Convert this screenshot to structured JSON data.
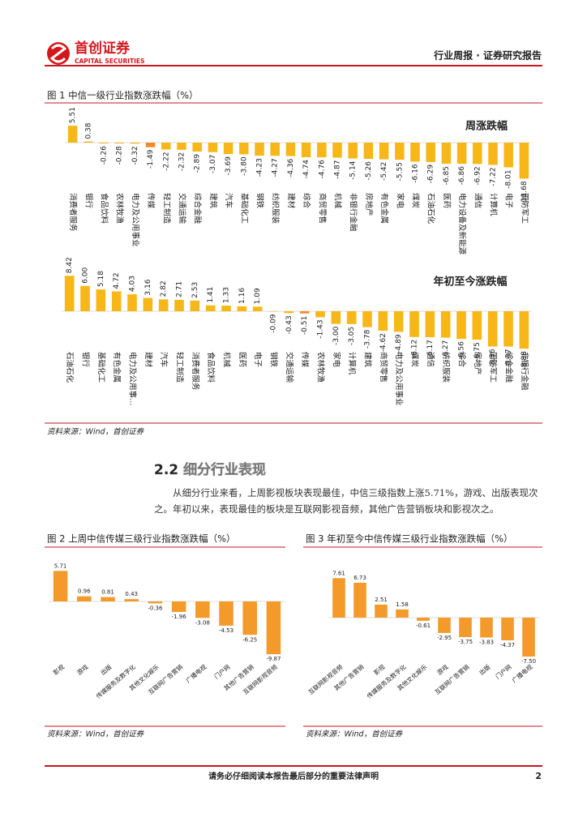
{
  "header": {
    "brand": "首创证券",
    "brand_en": "CAPITAL SECURITIES",
    "report_type": "行业周报 · 证券研究报告"
  },
  "figures": [
    {
      "caption": "图 1  中信一级行业指数涨跌幅（%）",
      "source": "资料来源：Wind，首创证券"
    },
    {
      "caption": "图 2  上周中信传媒三级行业指数涨跌幅（%）",
      "source": "资料来源：Wind，首创证券"
    },
    {
      "caption": "图 3  年初至今中信传媒三级行业指数涨跌幅（%）",
      "source": "资料来源：Wind，首创证券"
    }
  ],
  "section": {
    "heading": "2.2 细分行业表现",
    "paragraph": "从细分行业来看，上周影视板块表现最佳，中信三级指数上涨5.71%，游戏、出版表现次之。年初以来，表现最佳的板块是互联网影视音频，其他广告营销板块和影视次之。"
  },
  "footer": {
    "disclaimer": "请务必仔细阅读本报告最后部分的重要法律声明",
    "page": "2"
  },
  "chart_data": [
    {
      "type": "bar",
      "title": "周涨跌幅",
      "color": "#f7b718",
      "highlight": {
        "category": "传媒",
        "color": "#f08a24"
      },
      "categories": [
        "消费者服务",
        "银行",
        "食品饮料",
        "农林牧渔",
        "电力及公用事业",
        "传媒",
        "轻工制造",
        "交通运输",
        "综合金融",
        "建筑",
        "汽车",
        "基础化工",
        "钢铁",
        "纺织服装",
        "建材",
        "综合",
        "商贸零售",
        "机械",
        "非银行金融",
        "房地产",
        "有色金属",
        "家电",
        "煤炭",
        "石油石化",
        "医药",
        "电力设备及新能源",
        "通信",
        "计算机",
        "电子",
        "国防军工"
      ],
      "values": [
        5.51,
        0.38,
        -0.26,
        -0.28,
        -0.32,
        -1.49,
        -2.22,
        -2.32,
        -2.89,
        -3.07,
        -3.69,
        -3.8,
        -4.23,
        -4.27,
        -4.36,
        -4.74,
        -4.76,
        -4.87,
        -5.14,
        -5.26,
        -5.42,
        -5.55,
        -6.16,
        -6.29,
        -6.85,
        -6.86,
        -6.92,
        -7.22,
        -8.01,
        -11.68
      ],
      "value_labels": [
        "5.51",
        "0.38",
        "-0.26",
        "-0.28",
        "-0.32",
        "-1.49",
        "-2.22",
        "-2.32",
        "-2.89",
        "-3.07",
        "-3.69",
        "-3.80",
        "-4.23",
        "-4.27",
        "-4.36",
        "-4.74",
        "-4.76",
        "-4.87",
        "-5.14",
        "-5.26",
        "-5.42",
        "-5.55",
        "-6.16",
        "-6.29",
        "-6.85",
        "-6.86",
        "-6.92",
        "-7.22",
        "-8.01",
        "-11.68"
      ]
    },
    {
      "type": "bar",
      "title": "年初至今涨跌幅",
      "color": "#f7b718",
      "highlight": {
        "category": "传媒",
        "color": "#f08a24"
      },
      "categories": [
        "石油石化",
        "银行",
        "基础化工",
        "有色金属",
        "电力及公用事…",
        "建材",
        "汽车",
        "轻工制造",
        "消费者服务",
        "食品饮料",
        "机械",
        "医药",
        "电子",
        "钢铁",
        "交通运输",
        "传媒",
        "农林牧渔",
        "家电",
        "计算机",
        "建筑",
        "商贸零售",
        "电力及公用事业",
        "煤炭",
        "通信",
        "纺织服装",
        "综合",
        "房地产",
        "国防军工",
        "综合金融",
        "非银行金融"
      ],
      "values": [
        8.42,
        6.0,
        5.18,
        4.72,
        4.03,
        3.16,
        2.82,
        2.71,
        2.53,
        1.41,
        1.33,
        1.16,
        1.09,
        -0.09,
        -0.43,
        -0.51,
        -1.43,
        -3.0,
        -3.05,
        -3.78,
        -4.62,
        -4.89,
        -6.12,
        -6.17,
        -6.27,
        -6.56,
        -6.75,
        -8.36,
        -8.37,
        -8.88
      ],
      "value_labels": [
        "8.42",
        "6.00",
        "5.18",
        "4.72",
        "4.03",
        "3.16",
        "2.82",
        "2.71",
        "2.53",
        "1.41",
        "1.33",
        "1.16",
        "1.09",
        "-0.09",
        "-0.43",
        "-0.51",
        "-1.43",
        "-3.00",
        "-3.05",
        "-3.78",
        "-4.62",
        "-4.89",
        "-6.12",
        "-6.17",
        "-6.27",
        "-6.56",
        "-6.75",
        "-8.36",
        "-8.37",
        "-8.88"
      ]
    },
    {
      "type": "bar",
      "color": "#f39a2b",
      "categories": [
        "影视",
        "游戏",
        "出版",
        "传媒服务及数字化",
        "其他文化娱乐",
        "互联网广告营销",
        "广播电视",
        "门户网",
        "其他广告营销",
        "互联网影视音频"
      ],
      "values": [
        5.71,
        0.96,
        0.81,
        0.43,
        -0.36,
        -1.96,
        -3.08,
        -4.53,
        -6.25,
        -9.87
      ]
    },
    {
      "type": "bar",
      "color": "#f39a2b",
      "categories": [
        "互联网影视音频",
        "其他广告营销",
        "影视",
        "传媒服务及数字化",
        "其他文化娱乐",
        "游戏",
        "互联网广告营销",
        "出版",
        "门户网",
        "广播电视"
      ],
      "values": [
        7.61,
        6.73,
        2.51,
        1.58,
        -0.61,
        -2.95,
        -3.75,
        -3.83,
        -4.37,
        -7.5
      ],
      "value_labels": [
        "7.61",
        "6.73",
        "2.51",
        "1.58",
        "-0.61",
        "-2.95",
        "-3.75",
        "-3.83",
        "-4.37",
        "-7.50"
      ]
    }
  ]
}
